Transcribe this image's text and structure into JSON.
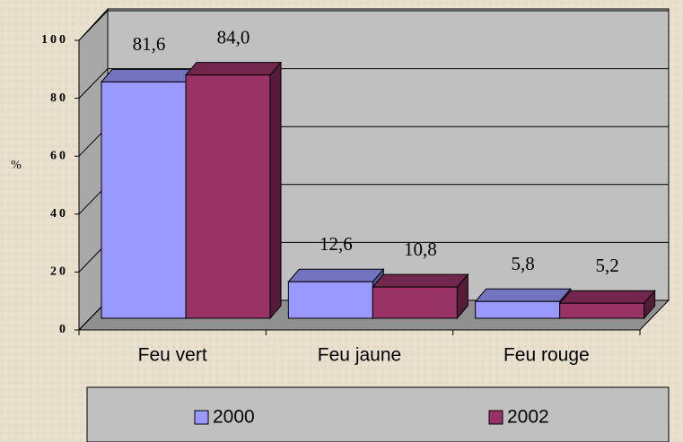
{
  "chart_data": {
    "type": "bar3d",
    "y_label": "%",
    "categories": [
      "Feu vert",
      "Feu jaune",
      "Feu rouge"
    ],
    "series": [
      {
        "name": "2000",
        "color": "#9999ff",
        "values": [
          81.6,
          12.6,
          5.8
        ],
        "value_labels": [
          "81,6",
          "12,6",
          "5,8"
        ]
      },
      {
        "name": "2002",
        "color": "#993366",
        "values": [
          84.0,
          10.8,
          5.2
        ],
        "value_labels": [
          "84,0",
          "10,8",
          "5,2"
        ]
      }
    ],
    "ylim": [
      0,
      100
    ],
    "yticks": [
      0,
      20,
      40,
      60,
      80,
      100
    ],
    "grid": true,
    "legend": "bottom"
  }
}
